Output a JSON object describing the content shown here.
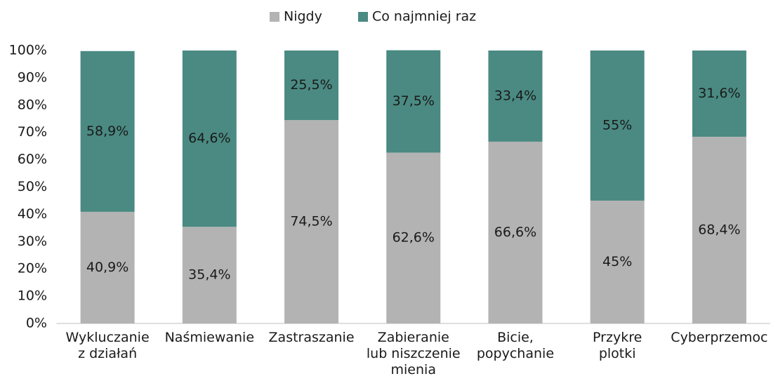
{
  "chart_data": {
    "type": "stacked_bar",
    "categories": [
      "Wykluczanie\nz działań",
      "Naśmiewanie",
      "Zastraszanie",
      "Zabieranie\nlub niszczenie\nmienia",
      "Bicie,\npopychanie",
      "Przykre\nplotki",
      "Cyberprzemoc"
    ],
    "series": [
      {
        "name": "Nigdy",
        "color": "#b3b3b3",
        "values": [
          40.9,
          35.4,
          74.5,
          62.6,
          66.6,
          45,
          68.4
        ],
        "value_labels": [
          "40,9%",
          "35,4%",
          "74,5%",
          "62,6%",
          "66,6%",
          "45%",
          "68,4%"
        ]
      },
      {
        "name": "Co najmniej raz",
        "color": "#4a8a82",
        "values": [
          58.9,
          64.6,
          25.5,
          37.5,
          33.4,
          55,
          31.6
        ],
        "value_labels": [
          "58,9%",
          "64,6%",
          "25,5%",
          "37,5%",
          "33,4%",
          "55%",
          "31,6%"
        ]
      }
    ],
    "ylim": [
      0,
      100
    ],
    "yticks": [
      {
        "value": 0,
        "label": "0%"
      },
      {
        "value": 10,
        "label": "10%"
      },
      {
        "value": 20,
        "label": "20%"
      },
      {
        "value": 30,
        "label": "30%"
      },
      {
        "value": 40,
        "label": "40%"
      },
      {
        "value": 50,
        "label": "50%"
      },
      {
        "value": 60,
        "label": "60%"
      },
      {
        "value": 70,
        "label": "70%"
      },
      {
        "value": 80,
        "label": "80%"
      },
      {
        "value": 90,
        "label": "90%"
      },
      {
        "value": 100,
        "label": "100%"
      }
    ],
    "legend": "top"
  }
}
